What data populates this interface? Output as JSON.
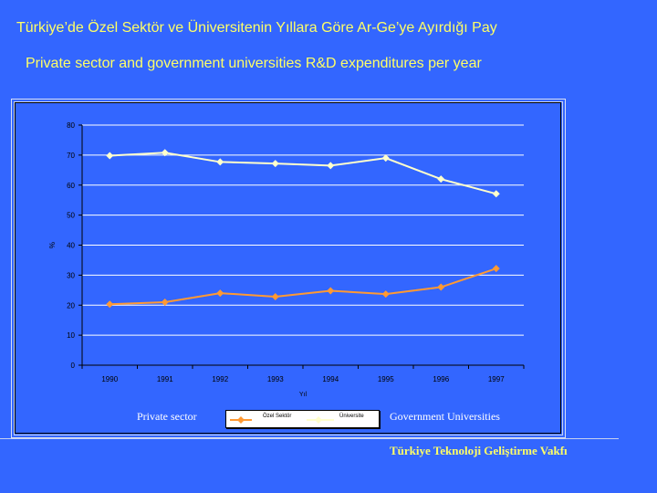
{
  "title_tr": "Türkiye’de Özel Sektör ve Üniversitenin Yıllara Göre Ar-Ge’ye Ayırdığı Pay",
  "title_en": "Private sector and government universities R&D expenditures per year",
  "label_private": "Private sector",
  "label_government": "Government Universities",
  "footer": "Türkiye Teknoloji Geliştirme Vakfı",
  "colors": {
    "background": "#3366ff",
    "title": "#ffff66",
    "universite": "#ffffcc",
    "ozel_sektor": "#ff9933",
    "grid": "#ffffff"
  },
  "chart_data": {
    "type": "line",
    "categories": [
      "1990",
      "1991",
      "1992",
      "1993",
      "1994",
      "1995",
      "1996",
      "1997"
    ],
    "series": [
      {
        "name": "Özel Sektör",
        "values": [
          20.3,
          21.0,
          24.0,
          22.8,
          24.8,
          23.7,
          26.0,
          32.2
        ]
      },
      {
        "name": "Üniversite",
        "values": [
          69.8,
          70.8,
          67.7,
          67.2,
          66.5,
          69.0,
          62.0,
          57.1
        ]
      }
    ],
    "xlabel": "Yıl",
    "ylabel": "%",
    "ylim": [
      0,
      80
    ],
    "yticks": [
      "0",
      "10",
      "20",
      "30",
      "40",
      "50",
      "60",
      "70",
      "80"
    ],
    "grid": true,
    "legend": "bottom"
  }
}
